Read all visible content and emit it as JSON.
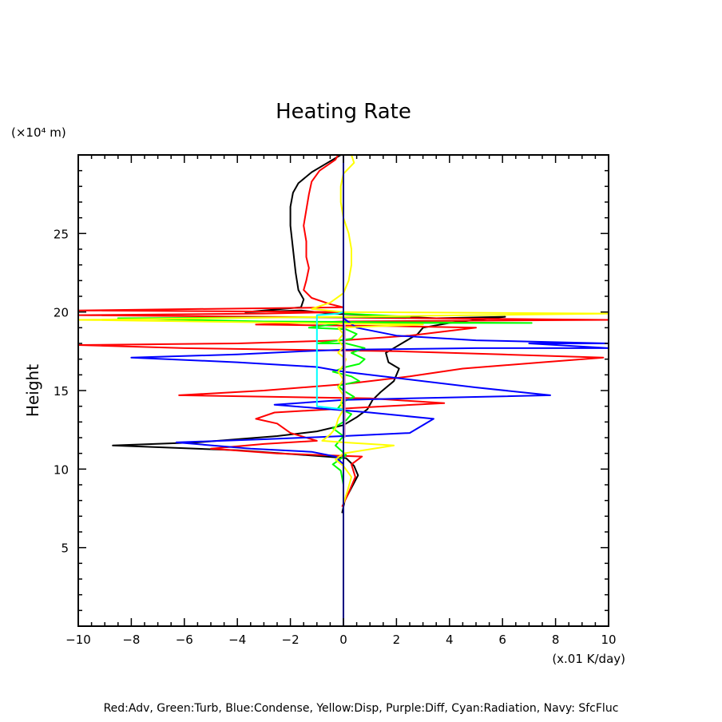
{
  "chart_data": {
    "type": "line",
    "title": "Heating Rate",
    "xlabel": "(x.01 K/day)",
    "ylabel": "Height",
    "y_unit_label": "(×10⁴ m)",
    "xlim": [
      -10,
      10
    ],
    "ylim": [
      0,
      30
    ],
    "x_ticks": [
      -10,
      -8,
      -6,
      -4,
      -2,
      0,
      2,
      4,
      6,
      8,
      10
    ],
    "x_tick_labels": [
      "−10",
      "−8",
      "−6",
      "−4",
      "−2",
      "0",
      "2",
      "4",
      "6",
      "8",
      "10"
    ],
    "y_ticks": [
      5,
      10,
      15,
      20,
      25
    ],
    "y_tick_labels": [
      "5",
      "10",
      "15",
      "20",
      "25"
    ],
    "grid": false,
    "legend_text": "Red:Adv, Green:Turb, Blue:Condense, Yellow:Disp, Purple:Diff, Cyan:Radiation, Navy: SfcFluc",
    "legend_placement": "bottom",
    "series": [
      {
        "name": "Black (total)",
        "color": "#000000",
        "points": [
          [
            -0.05,
            7.2
          ],
          [
            0.05,
            8.0
          ],
          [
            0.3,
            8.8
          ],
          [
            0.55,
            9.6
          ],
          [
            0.4,
            10.2
          ],
          [
            0.1,
            10.7
          ],
          [
            -1.5,
            10.9
          ],
          [
            -4.0,
            11.2
          ],
          [
            -8.7,
            11.5
          ],
          [
            -5.5,
            11.7
          ],
          [
            -2.5,
            12.1
          ],
          [
            -1.0,
            12.4
          ],
          [
            0.0,
            12.8
          ],
          [
            0.5,
            13.3
          ],
          [
            0.9,
            13.8
          ],
          [
            1.1,
            14.4
          ],
          [
            1.4,
            14.9
          ],
          [
            1.9,
            15.6
          ],
          [
            2.1,
            16.4
          ],
          [
            1.7,
            16.8
          ],
          [
            1.6,
            17.4
          ],
          [
            2.3,
            18.1
          ],
          [
            2.8,
            18.6
          ],
          [
            3.0,
            19.0
          ],
          [
            4.0,
            19.3
          ],
          [
            5.0,
            19.5
          ],
          [
            6.1,
            19.7
          ],
          [
            3.5,
            19.6
          ],
          [
            1.0,
            19.8
          ],
          [
            -0.5,
            19.9
          ],
          [
            -1.6,
            20.1
          ],
          [
            -3.7,
            20.0
          ],
          [
            -1.6,
            20.3
          ],
          [
            -1.5,
            20.8
          ],
          [
            -1.7,
            21.4
          ],
          [
            -1.8,
            22.5
          ],
          [
            -1.9,
            24.0
          ],
          [
            -2.0,
            25.5
          ],
          [
            -2.0,
            26.7
          ],
          [
            -1.9,
            27.6
          ],
          [
            -1.7,
            28.2
          ],
          [
            -1.2,
            28.9
          ],
          [
            -0.6,
            29.5
          ],
          [
            -0.1,
            30.0
          ]
        ]
      },
      {
        "name": "Red:Adv",
        "color": "#ff0000",
        "points": [
          [
            -0.05,
            7.6
          ],
          [
            0.2,
            8.5
          ],
          [
            0.45,
            9.5
          ],
          [
            0.3,
            10.3
          ],
          [
            0.7,
            10.8
          ],
          [
            -2.5,
            11.0
          ],
          [
            -5.0,
            11.3
          ],
          [
            -3.0,
            11.6
          ],
          [
            -1.0,
            11.8
          ],
          [
            -2.0,
            12.3
          ],
          [
            -2.5,
            12.9
          ],
          [
            -3.3,
            13.2
          ],
          [
            -2.6,
            13.6
          ],
          [
            0.5,
            13.9
          ],
          [
            3.8,
            14.2
          ],
          [
            1.0,
            14.5
          ],
          [
            -6.2,
            14.7
          ],
          [
            -3.0,
            15.0
          ],
          [
            0.0,
            15.4
          ],
          [
            2.5,
            15.9
          ],
          [
            4.5,
            16.4
          ],
          [
            7.5,
            16.8
          ],
          [
            9.8,
            17.1
          ],
          [
            6.0,
            17.3
          ],
          [
            2.0,
            17.5
          ],
          [
            -2.0,
            17.6
          ],
          [
            -6.0,
            17.7
          ],
          [
            -10.0,
            17.9
          ],
          [
            -4.0,
            18.0
          ],
          [
            0.0,
            18.2
          ],
          [
            2.5,
            18.5
          ],
          [
            5.0,
            19.0
          ],
          [
            2.0,
            19.1
          ],
          [
            -3.3,
            19.2
          ],
          [
            0.0,
            19.4
          ],
          [
            10.0,
            19.5
          ],
          [
            3.0,
            19.6
          ],
          [
            -10.0,
            19.8
          ],
          [
            -3.0,
            19.9
          ],
          [
            0.0,
            20.0
          ],
          [
            -10.0,
            20.1
          ],
          [
            -5.0,
            20.2
          ],
          [
            0.0,
            20.3
          ],
          [
            -0.5,
            20.5
          ],
          [
            -1.2,
            20.9
          ],
          [
            -1.5,
            21.4
          ],
          [
            -1.4,
            22.0
          ],
          [
            -1.3,
            22.8
          ],
          [
            -1.4,
            23.5
          ],
          [
            -1.4,
            24.5
          ],
          [
            -1.5,
            25.5
          ],
          [
            -1.4,
            26.5
          ],
          [
            -1.3,
            27.5
          ],
          [
            -1.2,
            28.3
          ],
          [
            -0.9,
            29.0
          ],
          [
            -0.3,
            29.7
          ],
          [
            -0.2,
            30.0
          ]
        ]
      },
      {
        "name": "Green:Turb",
        "color": "#00ff00",
        "points": [
          [
            0.0,
            7.5
          ],
          [
            0.0,
            9.0
          ],
          [
            -0.1,
            9.9
          ],
          [
            -0.4,
            10.3
          ],
          [
            0.1,
            10.9
          ],
          [
            -0.3,
            11.5
          ],
          [
            0.0,
            12.1
          ],
          [
            -0.4,
            12.6
          ],
          [
            0.1,
            13.1
          ],
          [
            0.3,
            13.5
          ],
          [
            -0.2,
            13.9
          ],
          [
            0.0,
            14.3
          ],
          [
            0.4,
            14.6
          ],
          [
            0.0,
            15.0
          ],
          [
            -0.2,
            15.3
          ],
          [
            0.6,
            15.6
          ],
          [
            0.3,
            15.9
          ],
          [
            -0.4,
            16.2
          ],
          [
            0.1,
            16.5
          ],
          [
            0.6,
            16.7
          ],
          [
            0.8,
            17.0
          ],
          [
            0.3,
            17.4
          ],
          [
            0.8,
            17.7
          ],
          [
            0.1,
            18.0
          ],
          [
            -1.0,
            18.0
          ],
          [
            0.3,
            18.3
          ],
          [
            0.5,
            18.6
          ],
          [
            0.1,
            18.9
          ],
          [
            -1.3,
            19.0
          ],
          [
            0.0,
            19.3
          ],
          [
            7.1,
            19.3
          ],
          [
            -3.0,
            19.4
          ],
          [
            -8.5,
            19.6
          ],
          [
            2.5,
            19.7
          ],
          [
            0.0,
            19.9
          ]
        ]
      },
      {
        "name": "Blue:Condense",
        "color": "#0000ff",
        "points": [
          [
            0.0,
            10.3
          ],
          [
            -0.3,
            10.8
          ],
          [
            -1.2,
            11.1
          ],
          [
            -3.5,
            11.3
          ],
          [
            -6.3,
            11.7
          ],
          [
            -3.0,
            11.9
          ],
          [
            0.0,
            12.1
          ],
          [
            2.5,
            12.3
          ],
          [
            3.4,
            13.2
          ],
          [
            1.0,
            13.6
          ],
          [
            -2.6,
            14.1
          ],
          [
            0.0,
            14.4
          ],
          [
            2.5,
            14.5
          ],
          [
            7.8,
            14.7
          ],
          [
            5.0,
            15.2
          ],
          [
            2.0,
            15.8
          ],
          [
            0.0,
            16.2
          ],
          [
            -1.0,
            16.5
          ],
          [
            -4.0,
            16.8
          ],
          [
            -8.0,
            17.1
          ],
          [
            -4.0,
            17.3
          ],
          [
            -1.5,
            17.5
          ],
          [
            0.0,
            17.6
          ],
          [
            5.0,
            17.7
          ],
          [
            10.0,
            17.7
          ],
          [
            7.0,
            18.0
          ],
          [
            10.0,
            18.0
          ],
          [
            5.0,
            18.2
          ],
          [
            2.0,
            18.5
          ],
          [
            0.5,
            19.0
          ],
          [
            0.0,
            19.6
          ],
          [
            0.0,
            20.0
          ]
        ]
      },
      {
        "name": "Yellow:Disp",
        "color": "#ffff00",
        "points": [
          [
            0.0,
            7.8
          ],
          [
            0.15,
            8.6
          ],
          [
            0.3,
            9.5
          ],
          [
            0.0,
            10.2
          ],
          [
            -0.3,
            10.6
          ],
          [
            0.0,
            11.0
          ],
          [
            1.9,
            11.5
          ],
          [
            0.0,
            11.7
          ],
          [
            -0.8,
            11.8
          ],
          [
            -0.5,
            12.2
          ],
          [
            -0.3,
            12.6
          ],
          [
            -0.2,
            13.2
          ],
          [
            0.0,
            13.8
          ],
          [
            -0.1,
            14.2
          ],
          [
            0.0,
            14.7
          ],
          [
            -0.2,
            15.2
          ],
          [
            0.0,
            15.7
          ],
          [
            -0.2,
            16.2
          ],
          [
            0.0,
            16.6
          ],
          [
            0.1,
            17.0
          ],
          [
            -0.2,
            17.4
          ],
          [
            0.0,
            17.8
          ],
          [
            -0.2,
            18.2
          ],
          [
            0.0,
            18.6
          ],
          [
            -0.2,
            19.0
          ],
          [
            3.0,
            19.2
          ],
          [
            -10.0,
            19.5
          ],
          [
            0.0,
            19.7
          ],
          [
            10.0,
            19.9
          ],
          [
            0.0,
            20.0
          ],
          [
            -1.2,
            20.2
          ],
          [
            -0.5,
            20.6
          ],
          [
            0.0,
            21.2
          ],
          [
            0.2,
            22.0
          ],
          [
            0.3,
            23.0
          ],
          [
            0.3,
            24.0
          ],
          [
            0.2,
            25.0
          ],
          [
            0.0,
            26.0
          ],
          [
            -0.1,
            27.0
          ],
          [
            -0.1,
            28.0
          ],
          [
            0.0,
            28.8
          ],
          [
            0.4,
            29.5
          ],
          [
            0.3,
            30.0
          ]
        ]
      },
      {
        "name": "Purple:Diff",
        "color": "#cc88cc",
        "points": [
          [
            0.05,
            12.0
          ],
          [
            0.05,
            14.0
          ],
          [
            0.05,
            16.0
          ],
          [
            0.05,
            18.0
          ],
          [
            0.05,
            19.2
          ]
        ]
      },
      {
        "name": "Cyan:Radiation",
        "color": "#00ffff",
        "points": [
          [
            0.0,
            13.8
          ],
          [
            -1.0,
            14.0
          ],
          [
            -1.0,
            15.5
          ],
          [
            -1.0,
            17.0
          ],
          [
            -1.0,
            18.5
          ],
          [
            -1.0,
            19.8
          ],
          [
            -0.2,
            19.9
          ],
          [
            0.0,
            20.0
          ]
        ]
      },
      {
        "name": "Navy: SfcFluc",
        "color": "#000080",
        "points": [
          [
            0.0,
            0.0
          ],
          [
            0.0,
            30.0
          ]
        ]
      }
    ]
  }
}
